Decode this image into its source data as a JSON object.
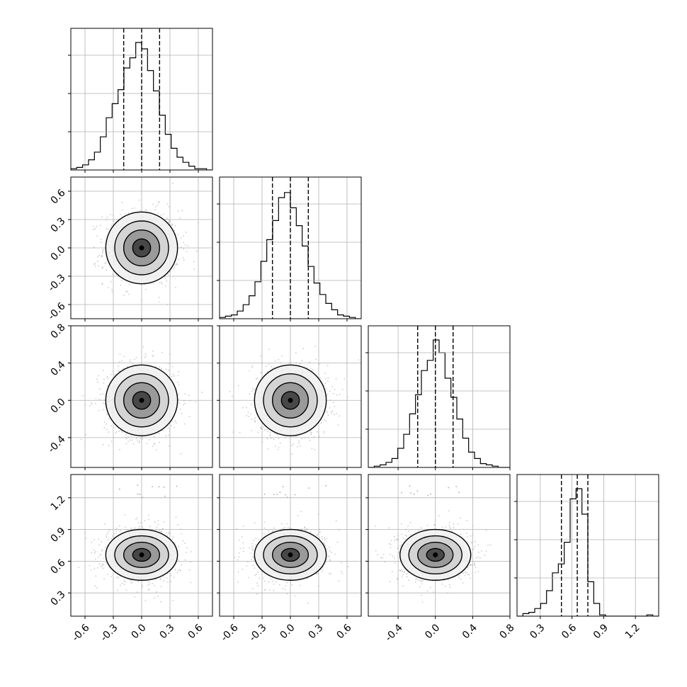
{
  "chart_data": {
    "type": "corner",
    "grid": true,
    "variables": [
      {
        "range": [
          -0.75,
          0.75
        ],
        "ticks": [
          "-0.6",
          "-0.3",
          "0.0",
          "0.3",
          "0.6"
        ],
        "tick_values": [
          -0.6,
          -0.3,
          0.0,
          0.3,
          0.6
        ],
        "quantiles": [
          -0.19,
          0.0,
          0.19
        ],
        "sigma": 0.19,
        "center": 0.0
      },
      {
        "range": [
          -0.75,
          0.75
        ],
        "ticks": [
          "-0.6",
          "-0.3",
          "0.0",
          "0.3",
          "0.6"
        ],
        "tick_values": [
          -0.6,
          -0.3,
          0.0,
          0.3,
          0.6
        ],
        "quantiles": [
          -0.19,
          0.0,
          0.19
        ],
        "sigma": 0.19,
        "center": 0.0
      },
      {
        "range": [
          -0.72,
          0.8
        ],
        "ticks": [
          "-0.4",
          "0.0",
          "0.4",
          "0.8"
        ],
        "tick_values": [
          -0.4,
          0.0,
          0.4,
          0.8
        ],
        "quantiles": [
          -0.19,
          0.0,
          0.19
        ],
        "sigma": 0.19,
        "center": 0.0
      },
      {
        "range": [
          0.08,
          1.42
        ],
        "ticks": [
          "0.3",
          "0.6",
          "0.9",
          "1.2"
        ],
        "tick_values": [
          0.3,
          0.6,
          0.9,
          1.2
        ],
        "quantiles": [
          0.5,
          0.65,
          0.75
        ],
        "sigma": 0.12,
        "center": 0.66
      }
    ],
    "histograms": [
      [
        1,
        2,
        4,
        8,
        14,
        26,
        41,
        52,
        63,
        80,
        88,
        100,
        95,
        78,
        62,
        43,
        28,
        17,
        10,
        6,
        3,
        1,
        1,
        0
      ],
      [
        1,
        2,
        3,
        6,
        11,
        18,
        29,
        45,
        62,
        77,
        95,
        99,
        87,
        73,
        57,
        41,
        28,
        19,
        12,
        7,
        3,
        2,
        1,
        0
      ],
      [
        0,
        1,
        2,
        4,
        7,
        15,
        26,
        42,
        57,
        76,
        84,
        100,
        90,
        70,
        55,
        38,
        23,
        12,
        7,
        3,
        2,
        1,
        0,
        0
      ],
      [
        0,
        2,
        3,
        6,
        10,
        20,
        34,
        41,
        58,
        92,
        100,
        80,
        27,
        10,
        1,
        0,
        0,
        0,
        0,
        0,
        0,
        0,
        1,
        0
      ]
    ]
  }
}
